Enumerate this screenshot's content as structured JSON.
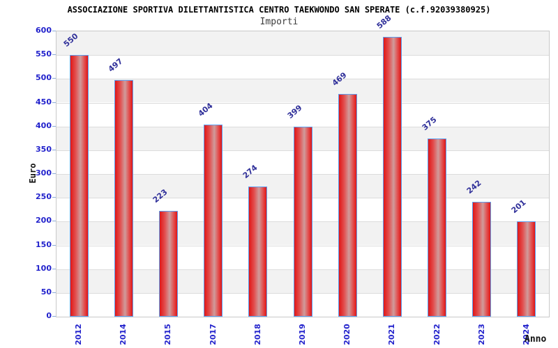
{
  "chart_data": {
    "type": "bar",
    "title": "ASSOCIAZIONE SPORTIVA DILETTANTISTICA CENTRO TAEKWONDO SAN SPERATE (c.f.92039380925)",
    "subtitle": "Importi",
    "xlabel": "Anno",
    "ylabel": "Euro",
    "categories": [
      "2012",
      "2014",
      "2015",
      "2017",
      "2018",
      "2019",
      "2020",
      "2021",
      "2022",
      "2023",
      "2024"
    ],
    "values": [
      550,
      497,
      223,
      404,
      274,
      399,
      469,
      588,
      375,
      242,
      201
    ],
    "ylim": [
      0,
      600
    ],
    "ytick_step": 50,
    "yticks": [
      0,
      50,
      100,
      150,
      200,
      250,
      300,
      350,
      400,
      450,
      500,
      550,
      600
    ],
    "legend": null,
    "grid": "alternating horizontal bands every 50 units, light gray / white, gridlines at each tick",
    "colors": {
      "bar_edge": "#e01616",
      "bar_highlight": "#d09b9b",
      "bar_border": "#5c9ff0",
      "tick_label": "#2222cc",
      "value_label": "#30309a",
      "band_gray": "#f2f2f2",
      "gridline": "#dcdcdc",
      "plot_border": "#c9c9c9",
      "title": "#000000",
      "subtitle": "#3c3c3c"
    }
  }
}
